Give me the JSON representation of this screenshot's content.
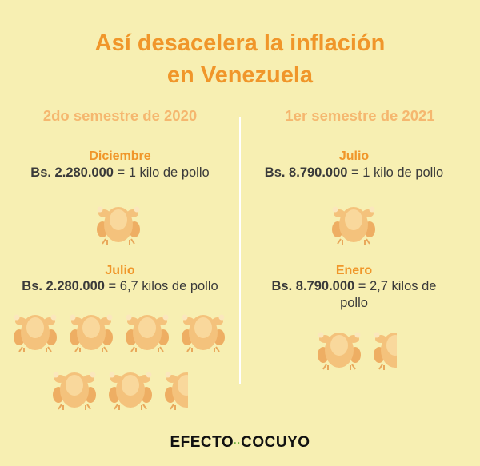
{
  "title": {
    "line1": "Así desacelera la inflación",
    "line2": "en Venezuela"
  },
  "left": {
    "semester": "2do semestre de 2020",
    "block1": {
      "month": "Diciembre",
      "amount": "Bs. 2.280.000",
      "rest": " = 1 kilo de pollo"
    },
    "block2": {
      "month": "Julio",
      "amount": "Bs. 2.280.000",
      "rest": " = 6,7 kilos de pollo"
    }
  },
  "right": {
    "semester": "1er semestre de 2021",
    "block1": {
      "month": "Julio",
      "amount": "Bs. 8.790.000",
      "rest": " = 1 kilo de pollo"
    },
    "block2": {
      "month": "Enero",
      "amount": "Bs. 8.790.000",
      "rest": " = 2,7  kilos de",
      "rest2": "pollo"
    }
  },
  "logo": {
    "left": "EFECTO",
    "dots": "··",
    "right": "COCUYO"
  },
  "colors": {
    "background": "#f7efb2",
    "accent": "#f0962a",
    "semester": "#f5b76f",
    "chicken": "#f4c27c",
    "logo_dots": "#6cae3a"
  },
  "icons": {
    "chicken": "roast-chicken-icon"
  }
}
